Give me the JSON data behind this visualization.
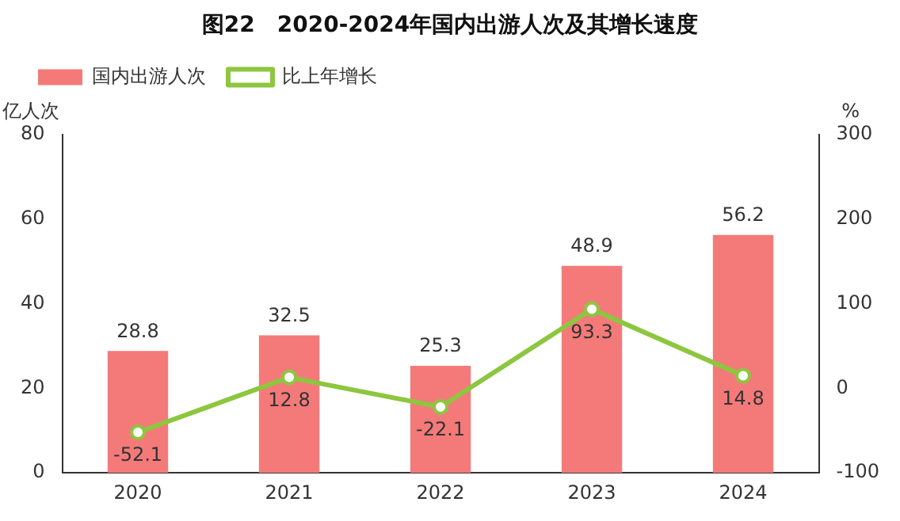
{
  "chart_data": {
    "type": "bar",
    "title": "图22　2020-2024年国内出游人次及其增长速度",
    "ylabel": "亿人次",
    "y2label": "%",
    "categories": [
      "2020",
      "2021",
      "2022",
      "2023",
      "2024"
    ],
    "series": [
      {
        "name": "国内出游人次",
        "color": "#f47a7a",
        "values": [
          28.8,
          32.5,
          25.3,
          48.9,
          56.2
        ]
      },
      {
        "name": "比上年增长",
        "type": "line",
        "axis": "y2",
        "color": "#8dc63f",
        "values": [
          -52.1,
          12.8,
          -22.1,
          93.3,
          14.8
        ]
      }
    ],
    "ylim": [
      0,
      80
    ],
    "yticks": [
      0,
      20,
      40,
      60,
      80
    ],
    "y2lim": [
      -100,
      300
    ],
    "y2ticks": [
      -100,
      0,
      100,
      200,
      300
    ],
    "legend": "top left",
    "grid": false,
    "marker": "circle",
    "data_labels": true
  }
}
